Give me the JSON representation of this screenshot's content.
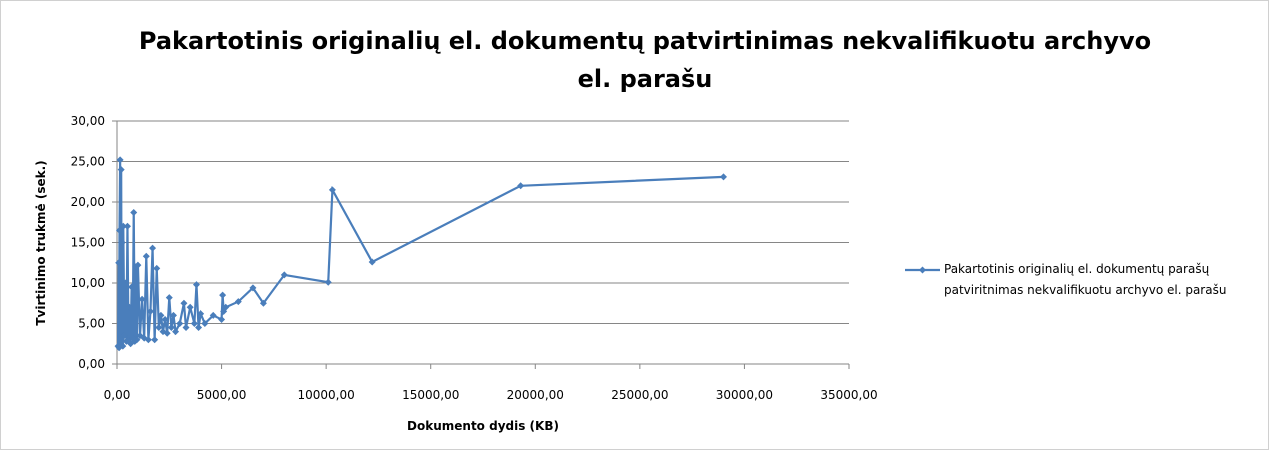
{
  "chart_data": {
    "type": "line",
    "title": "Pakartotinis originalių el. dokumentų patvirtinimas nekvalifikuotu archyvo el. parašu",
    "x_label": "Dokumento dydis (KB)",
    "y_label": "Tvirtinimo trukmė  (sek.)",
    "x": [
      50,
      80,
      100,
      120,
      150,
      180,
      200,
      220,
      250,
      280,
      300,
      350,
      400,
      450,
      500,
      550,
      600,
      650,
      700,
      750,
      800,
      850,
      900,
      950,
      1000,
      1100,
      1200,
      1300,
      1400,
      1500,
      1600,
      1700,
      1800,
      1900,
      2000,
      2100,
      2200,
      2300,
      2400,
      2500,
      2600,
      2700,
      2800,
      3000,
      3200,
      3300,
      3500,
      3700,
      3800,
      3900,
      4000,
      4200,
      4600,
      5000,
      5050,
      5100,
      5200,
      5800,
      6500,
      7000,
      8000,
      10100,
      10300,
      12200,
      19300,
      29000
    ],
    "series": [
      {
        "name": "Pakartotinis originalių el. dokumentų parašų patviritnimas nekvalifikuotu archyvo el. parašu",
        "color": "#4a7ebb",
        "values": [
          2.2,
          12.5,
          2.0,
          16.5,
          25.2,
          2.5,
          24.0,
          3.0,
          15.0,
          2.2,
          17.0,
          3.5,
          10.0,
          2.8,
          17.0,
          3.0,
          7.0,
          2.5,
          9.5,
          3.2,
          18.7,
          2.8,
          12.0,
          3.0,
          12.2,
          3.5,
          8.0,
          3.2,
          13.3,
          3.0,
          6.5,
          14.3,
          3.0,
          11.8,
          4.5,
          6.0,
          4.0,
          5.5,
          3.8,
          8.2,
          4.5,
          6.0,
          4.0,
          5.0,
          7.5,
          4.5,
          7.0,
          5.0,
          9.8,
          4.5,
          6.2,
          5.0,
          6.0,
          5.5,
          8.5,
          6.5,
          7.0,
          7.7,
          9.4,
          7.5,
          11.0,
          10.1,
          21.5,
          12.6,
          22.0,
          23.1
        ]
      }
    ],
    "xlim": [
      0,
      35000
    ],
    "xticks": [
      {
        "value": 0,
        "label": "0,00"
      },
      {
        "value": 5000,
        "label": "5000,00"
      },
      {
        "value": 10000,
        "label": "10000,00"
      },
      {
        "value": 15000,
        "label": "15000,00"
      },
      {
        "value": 20000,
        "label": "20000,00"
      },
      {
        "value": 25000,
        "label": "25000,00"
      },
      {
        "value": 30000,
        "label": "30000,00"
      },
      {
        "value": 35000,
        "label": "35000,00"
      }
    ],
    "ylim": [
      0,
      30
    ],
    "yticks": [
      {
        "value": 0,
        "label": "0,00"
      },
      {
        "value": 5,
        "label": "5,00"
      },
      {
        "value": 10,
        "label": "10,00"
      },
      {
        "value": 15,
        "label": "15,00"
      },
      {
        "value": 20,
        "label": "20,00"
      },
      {
        "value": 25,
        "label": "25,00"
      },
      {
        "value": 30,
        "label": "30,00"
      }
    ],
    "grid": true,
    "legend": "right"
  }
}
